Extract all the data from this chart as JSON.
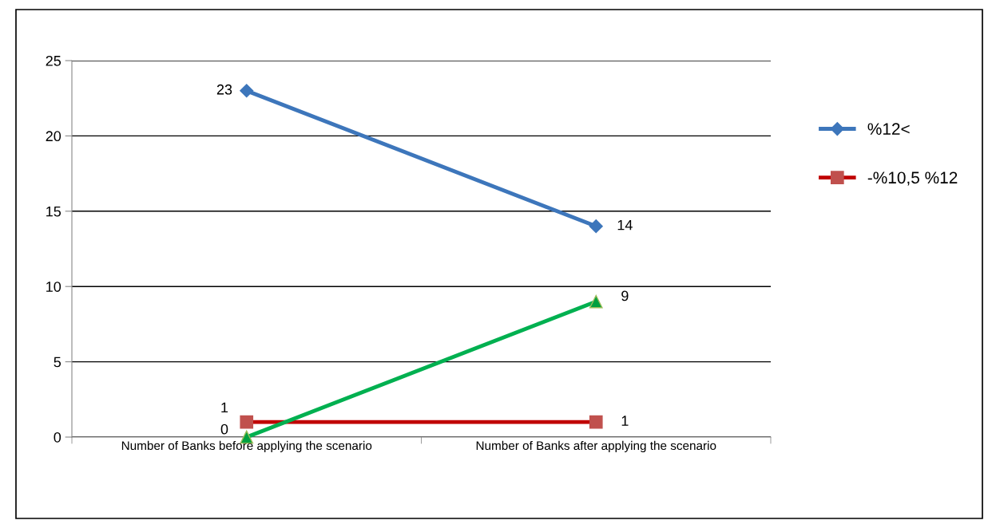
{
  "chart_data": {
    "type": "line",
    "categories": [
      "Number of Banks before applying the scenario",
      "Number of Banks after applying the scenario"
    ],
    "series": [
      {
        "name": "%12<",
        "color": "#3d76bb",
        "marker": "diamond",
        "values": [
          23,
          14
        ]
      },
      {
        "name": "-%10,5 %12",
        "color": "#c00000",
        "marker": "square",
        "values": [
          1,
          1
        ]
      },
      {
        "color": "#00b050",
        "marker": "triangle",
        "values": [
          0,
          9
        ]
      }
    ],
    "ylim": [
      0,
      25
    ],
    "yticks": [
      0,
      5,
      10,
      15,
      20,
      25
    ],
    "grid": "y",
    "legend": "right",
    "data_labels": true,
    "line_style": "solid"
  }
}
